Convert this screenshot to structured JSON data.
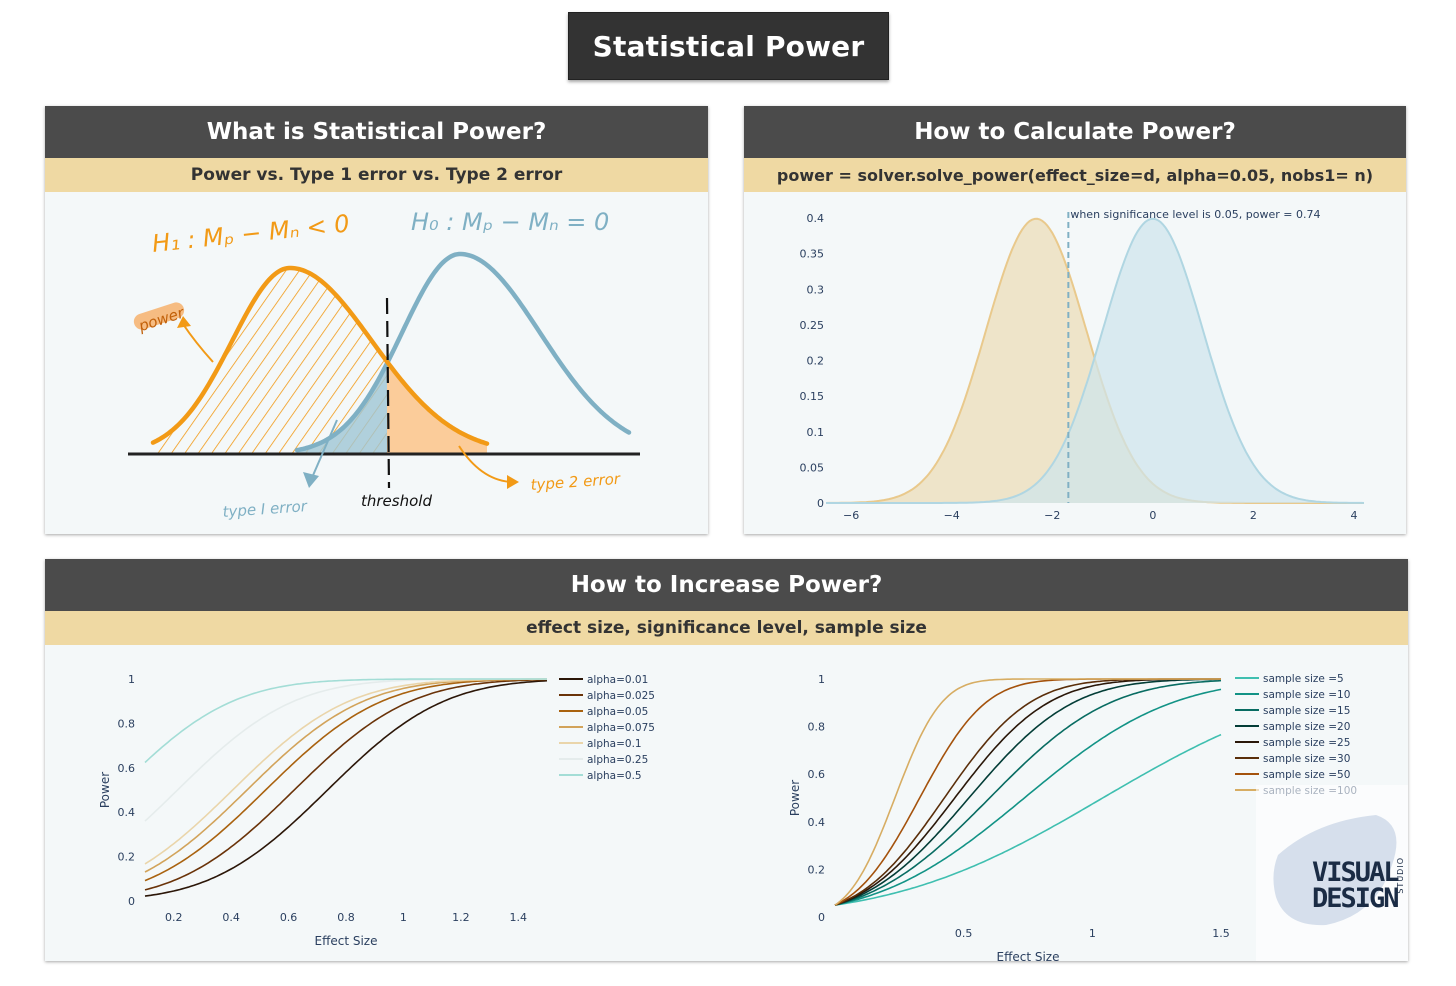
{
  "title": "Statistical Power",
  "panel_left": {
    "header": "What is Statistical Power?",
    "subheader": "Power vs. Type 1 error vs. Type 2 error",
    "labels": {
      "h1": "H₁ : Mₚ − Mₙ < 0",
      "h0": "H₀ : Mₚ − Mₙ = 0",
      "power": "power",
      "threshold": "threshold",
      "type1": "type I error",
      "type2": "type 2 error"
    },
    "colors": {
      "h1": "#f29a16",
      "h0": "#7fb0c4",
      "baseline": "#222222"
    }
  },
  "panel_right": {
    "header": "How to Calculate Power?",
    "subheader": "power = solver.solve_power(effect_size=d, alpha=0.05, nobs1= n)"
  },
  "panel_bottom": {
    "header": "How to Increase Power?",
    "subheader": "effect size, significance level, sample size"
  },
  "logo": {
    "line1": "VISUAL",
    "line2": "DESIGN",
    "side": "STUDIO"
  },
  "chart_data": [
    {
      "type": "area",
      "annotation": "when significance level is 0.05, power = 0.74",
      "x_range": [
        -6.5,
        4.2
      ],
      "xlim": [
        -6.5,
        4.2
      ],
      "ylim": [
        0,
        0.4
      ],
      "x_ticks": [
        -6,
        -4,
        -2,
        0,
        2,
        4
      ],
      "x_tick_labels": [
        "−6",
        "−4",
        "−2",
        "0",
        "2",
        "4"
      ],
      "y_ticks": [
        0,
        0.05,
        0.1,
        0.15,
        0.2,
        0.25,
        0.3,
        0.35,
        0.4
      ],
      "threshold": -1.68,
      "series": [
        {
          "mean": -2.32,
          "sd": 1,
          "color": "#e9c98c",
          "fill": "#ecdcb6"
        },
        {
          "mean": 0,
          "sd": 1,
          "color": "#b0d6e2",
          "fill": "#cfe5ec"
        }
      ]
    },
    {
      "type": "line",
      "xlabel": "Effect Size",
      "ylabel": "Power",
      "xlim": [
        0.1,
        1.5
      ],
      "ylim": [
        0,
        1
      ],
      "x_ticks": [
        0.2,
        0.4,
        0.6,
        0.8,
        1,
        1.2,
        1.4
      ],
      "y_ticks": [
        0,
        0.2,
        0.4,
        0.6,
        0.8,
        1
      ],
      "n": 20,
      "series": [
        {
          "name": "alpha=0.01",
          "alpha": 0.01,
          "color": "#2b1608"
        },
        {
          "name": "alpha=0.025",
          "alpha": 0.025,
          "color": "#6a3309"
        },
        {
          "name": "alpha=0.05",
          "alpha": 0.05,
          "color": "#a9620f"
        },
        {
          "name": "alpha=0.075",
          "alpha": 0.075,
          "color": "#d2a35a"
        },
        {
          "name": "alpha=0.1",
          "alpha": 0.1,
          "color": "#ead5aa"
        },
        {
          "name": "alpha=0.25",
          "alpha": 0.25,
          "color": "#e5ecec"
        },
        {
          "name": "alpha=0.5",
          "alpha": 0.5,
          "color": "#a3ddd6"
        }
      ]
    },
    {
      "type": "line",
      "xlabel": "Effect Size",
      "ylabel": "Power",
      "xlim": [
        0,
        1.5
      ],
      "ylim": [
        0,
        1
      ],
      "x_ticks": [
        0.5,
        1,
        1.5
      ],
      "y_ticks": [
        0,
        0.2,
        0.4,
        0.6,
        0.8,
        1
      ],
      "alpha": 0.05,
      "series": [
        {
          "name": "sample size =5",
          "n": 5,
          "color": "#3fbfb0"
        },
        {
          "name": "sample size =10",
          "n": 10,
          "color": "#129386"
        },
        {
          "name": "sample size =15",
          "n": 15,
          "color": "#086c62"
        },
        {
          "name": "sample size =20",
          "n": 20,
          "color": "#033d37"
        },
        {
          "name": "sample size =25",
          "n": 25,
          "color": "#2a1709"
        },
        {
          "name": "sample size =30",
          "n": 30,
          "color": "#5a2e0a"
        },
        {
          "name": "sample size =50",
          "n": 50,
          "color": "#a4520c"
        },
        {
          "name": "sample size =100",
          "n": 100,
          "color": "#d7ad63"
        }
      ]
    }
  ]
}
